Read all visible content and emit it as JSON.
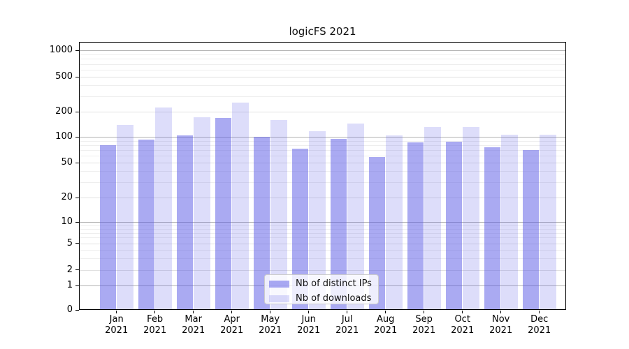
{
  "chart_data": {
    "type": "bar",
    "title": "logicFS 2021",
    "categories": [
      "Jan 2021",
      "Feb 2021",
      "Mar 2021",
      "Apr 2021",
      "May 2021",
      "Jun 2021",
      "Jul 2021",
      "Aug 2021",
      "Sep 2021",
      "Oct 2021",
      "Nov 2021",
      "Dec 2021"
    ],
    "series": [
      {
        "name": "Nb of distinct IPs",
        "color": "rgba(85,85,230,0.5)",
        "values": [
          80,
          92,
          104,
          168,
          100,
          73,
          94,
          58,
          86,
          88,
          75,
          70
        ]
      },
      {
        "name": "Nb of downloads",
        "color": "rgba(85,85,230,0.2)",
        "values": [
          138,
          222,
          170,
          255,
          158,
          117,
          144,
          104,
          131,
          130,
          105,
          106
        ]
      }
    ],
    "y_scale": "symlog",
    "y_ticks": [
      0,
      1,
      2,
      5,
      10,
      20,
      50,
      100,
      200,
      500,
      1000
    ],
    "ylim": [
      0,
      1400
    ],
    "xlabel": "",
    "ylabel": "",
    "grid": "horizontal, log minor gridlines",
    "legend_position": "lower center"
  },
  "colors": {
    "bar_dark": "rgba(85,85,230,0.5)",
    "bar_light": "rgba(85,85,230,0.2)",
    "grid_major": "#b3b3b3",
    "grid_minor": "#eeeeee",
    "axis": "#000000",
    "background": "#ffffff"
  }
}
